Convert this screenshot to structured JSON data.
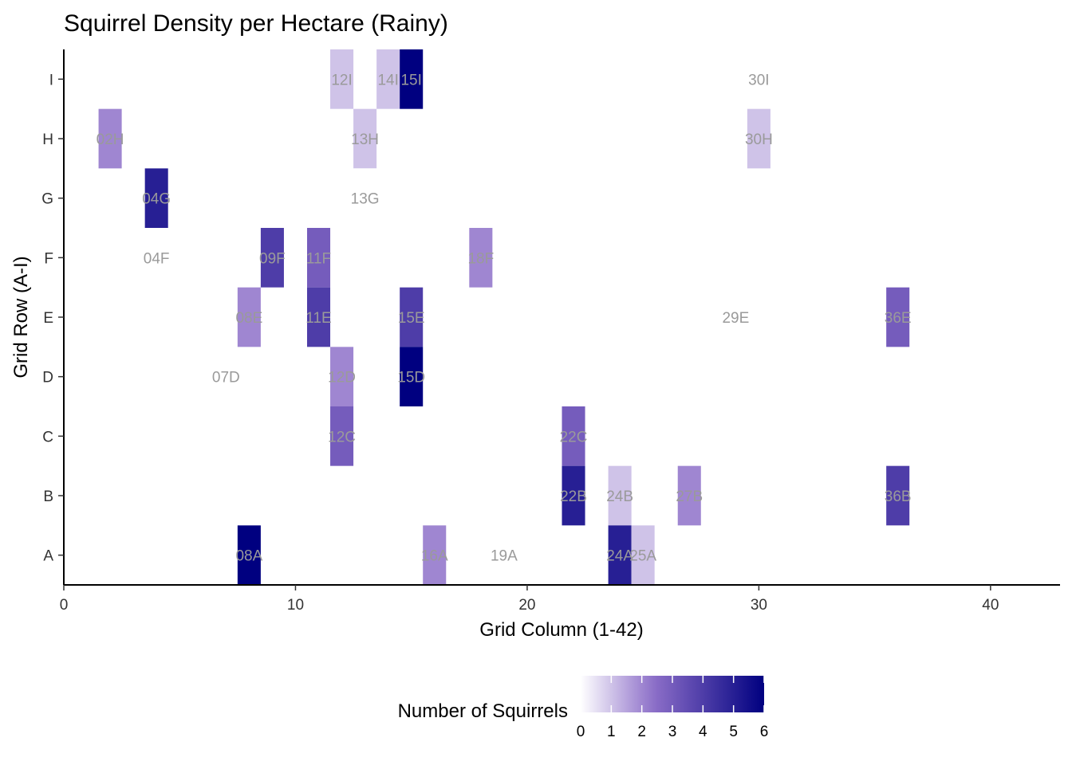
{
  "chart_data": {
    "type": "heatmap",
    "title": "Squirrel Density per Hectare (Rainy)",
    "xlabel": "Grid Column (1-42)",
    "ylabel": "Grid Row (A-I)",
    "xlim": [
      0,
      43
    ],
    "x_ticks": [
      0,
      10,
      20,
      30,
      40
    ],
    "rows": [
      "A",
      "B",
      "C",
      "D",
      "E",
      "F",
      "G",
      "H",
      "I"
    ],
    "legend": {
      "title": "Number of Squirrels",
      "position": "bottom",
      "ticks": [
        0,
        1,
        2,
        3,
        4,
        5,
        6
      ],
      "low_color": "#ffffff",
      "high_color": "#000080"
    },
    "cells": [
      {
        "col": 2,
        "row": "H",
        "value": 2,
        "label": "02H"
      },
      {
        "col": 4,
        "row": "G",
        "value": 5,
        "label": "04G"
      },
      {
        "col": 4,
        "row": "F",
        "value": 0,
        "label": "04F"
      },
      {
        "col": 7,
        "row": "D",
        "value": 0,
        "label": "07D"
      },
      {
        "col": 8,
        "row": "E",
        "value": 2,
        "label": "08E"
      },
      {
        "col": 8,
        "row": "A",
        "value": 6,
        "label": "08A"
      },
      {
        "col": 9,
        "row": "F",
        "value": 4,
        "label": "09F"
      },
      {
        "col": 11,
        "row": "F",
        "value": 3,
        "label": "11F"
      },
      {
        "col": 11,
        "row": "E",
        "value": 4,
        "label": "11E"
      },
      {
        "col": 12,
        "row": "I",
        "value": 1,
        "label": "12I"
      },
      {
        "col": 12,
        "row": "D",
        "value": 2,
        "label": "12D"
      },
      {
        "col": 12,
        "row": "C",
        "value": 3,
        "label": "12C"
      },
      {
        "col": 13,
        "row": "H",
        "value": 1,
        "label": "13H"
      },
      {
        "col": 13,
        "row": "G",
        "value": 0,
        "label": "13G"
      },
      {
        "col": 14,
        "row": "I",
        "value": 1,
        "label": "14I"
      },
      {
        "col": 15,
        "row": "I",
        "value": 6,
        "label": "15I"
      },
      {
        "col": 15,
        "row": "E",
        "value": 4,
        "label": "15E"
      },
      {
        "col": 15,
        "row": "D",
        "value": 6,
        "label": "15D"
      },
      {
        "col": 16,
        "row": "A",
        "value": 2,
        "label": "16A"
      },
      {
        "col": 18,
        "row": "F",
        "value": 2,
        "label": "18F"
      },
      {
        "col": 19,
        "row": "A",
        "value": 0,
        "label": "19A"
      },
      {
        "col": 22,
        "row": "C",
        "value": 3,
        "label": "22C"
      },
      {
        "col": 22,
        "row": "B",
        "value": 5,
        "label": "22B"
      },
      {
        "col": 24,
        "row": "B",
        "value": 1,
        "label": "24B"
      },
      {
        "col": 24,
        "row": "A",
        "value": 5,
        "label": "24A"
      },
      {
        "col": 25,
        "row": "A",
        "value": 1,
        "label": "25A"
      },
      {
        "col": 27,
        "row": "B",
        "value": 2,
        "label": "27B"
      },
      {
        "col": 29,
        "row": "E",
        "value": 0,
        "label": "29E"
      },
      {
        "col": 30,
        "row": "I",
        "value": 0,
        "label": "30I"
      },
      {
        "col": 30,
        "row": "H",
        "value": 1,
        "label": "30H"
      },
      {
        "col": 36,
        "row": "E",
        "value": 3,
        "label": "36E"
      },
      {
        "col": 36,
        "row": "B",
        "value": 4,
        "label": "36B"
      }
    ]
  }
}
